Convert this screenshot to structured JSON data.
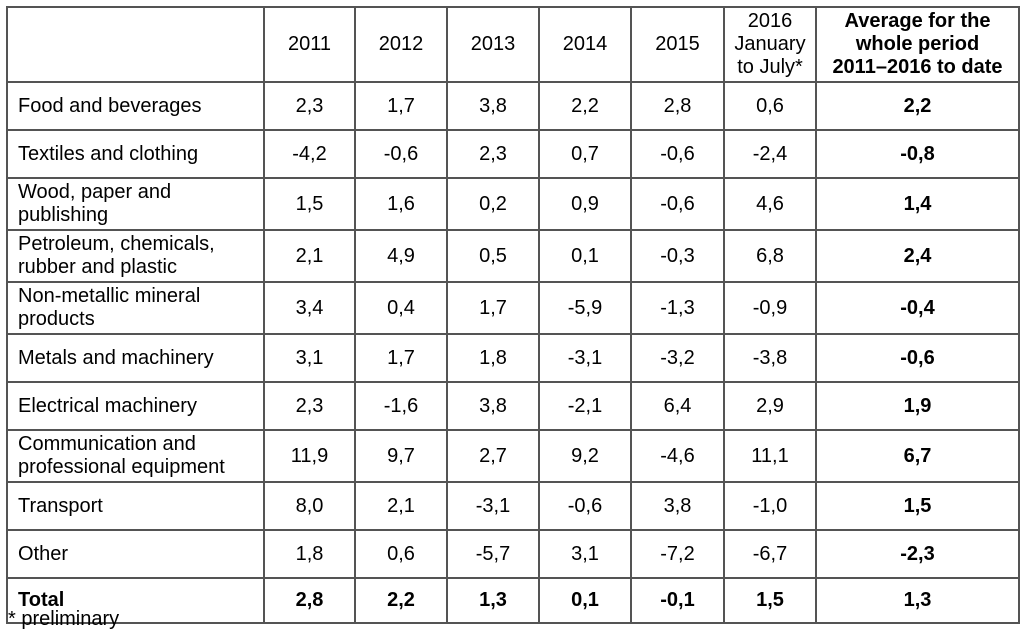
{
  "colors": {
    "background": "#ffffff",
    "border": "#545454",
    "text": "#000000"
  },
  "table": {
    "columns": [
      "",
      "2011",
      "2012",
      "2013",
      "2014",
      "2015",
      "2016\nJanuary\nto July*",
      "Average for the\nwhole period\n2011–2016 to date"
    ],
    "rows": [
      {
        "label": "Food and beverages",
        "values": [
          "2,3",
          "1,7",
          "3,8",
          "2,2",
          "2,8",
          "0,6",
          "2,2"
        ],
        "bold": false
      },
      {
        "label": "Textiles and clothing",
        "values": [
          "-4,2",
          "-0,6",
          "2,3",
          "0,7",
          "-0,6",
          "-2,4",
          "-0,8"
        ],
        "bold": false
      },
      {
        "label": "Wood, paper and publishing",
        "values": [
          "1,5",
          "1,6",
          "0,2",
          "0,9",
          "-0,6",
          "4,6",
          "1,4"
        ],
        "bold": false
      },
      {
        "label": "Petroleum, chemicals, rubber and plastic",
        "values": [
          "2,1",
          "4,9",
          "0,5",
          "0,1",
          "-0,3",
          "6,8",
          "2,4"
        ],
        "bold": false
      },
      {
        "label": "Non-metallic mineral products",
        "values": [
          "3,4",
          "0,4",
          "1,7",
          "-5,9",
          "-1,3",
          "-0,9",
          "-0,4"
        ],
        "bold": false
      },
      {
        "label": "Metals and machinery",
        "values": [
          "3,1",
          "1,7",
          "1,8",
          "-3,1",
          "-3,2",
          "-3,8",
          "-0,6"
        ],
        "bold": false
      },
      {
        "label": "Electrical machinery",
        "values": [
          "2,3",
          "-1,6",
          "3,8",
          "-2,1",
          "6,4",
          "2,9",
          "1,9"
        ],
        "bold": false
      },
      {
        "label": "Communication and professional equipment",
        "values": [
          "11,9",
          "9,7",
          "2,7",
          "9,2",
          "-4,6",
          "11,1",
          "6,7"
        ],
        "bold": false
      },
      {
        "label": "Transport",
        "values": [
          "8,0",
          "2,1",
          "-3,1",
          "-0,6",
          "3,8",
          "-1,0",
          "1,5"
        ],
        "bold": false
      },
      {
        "label": "Other",
        "values": [
          "1,8",
          "0,6",
          "-5,7",
          "3,1",
          "-7,2",
          "-6,7",
          "-2,3"
        ],
        "bold": false
      },
      {
        "label": "Total",
        "values": [
          "2,8",
          "2,2",
          "1,3",
          "0,1",
          "-0,1",
          "1,5",
          "1,3"
        ],
        "bold": true
      }
    ]
  },
  "footnote": {
    "text": "* preliminary"
  }
}
